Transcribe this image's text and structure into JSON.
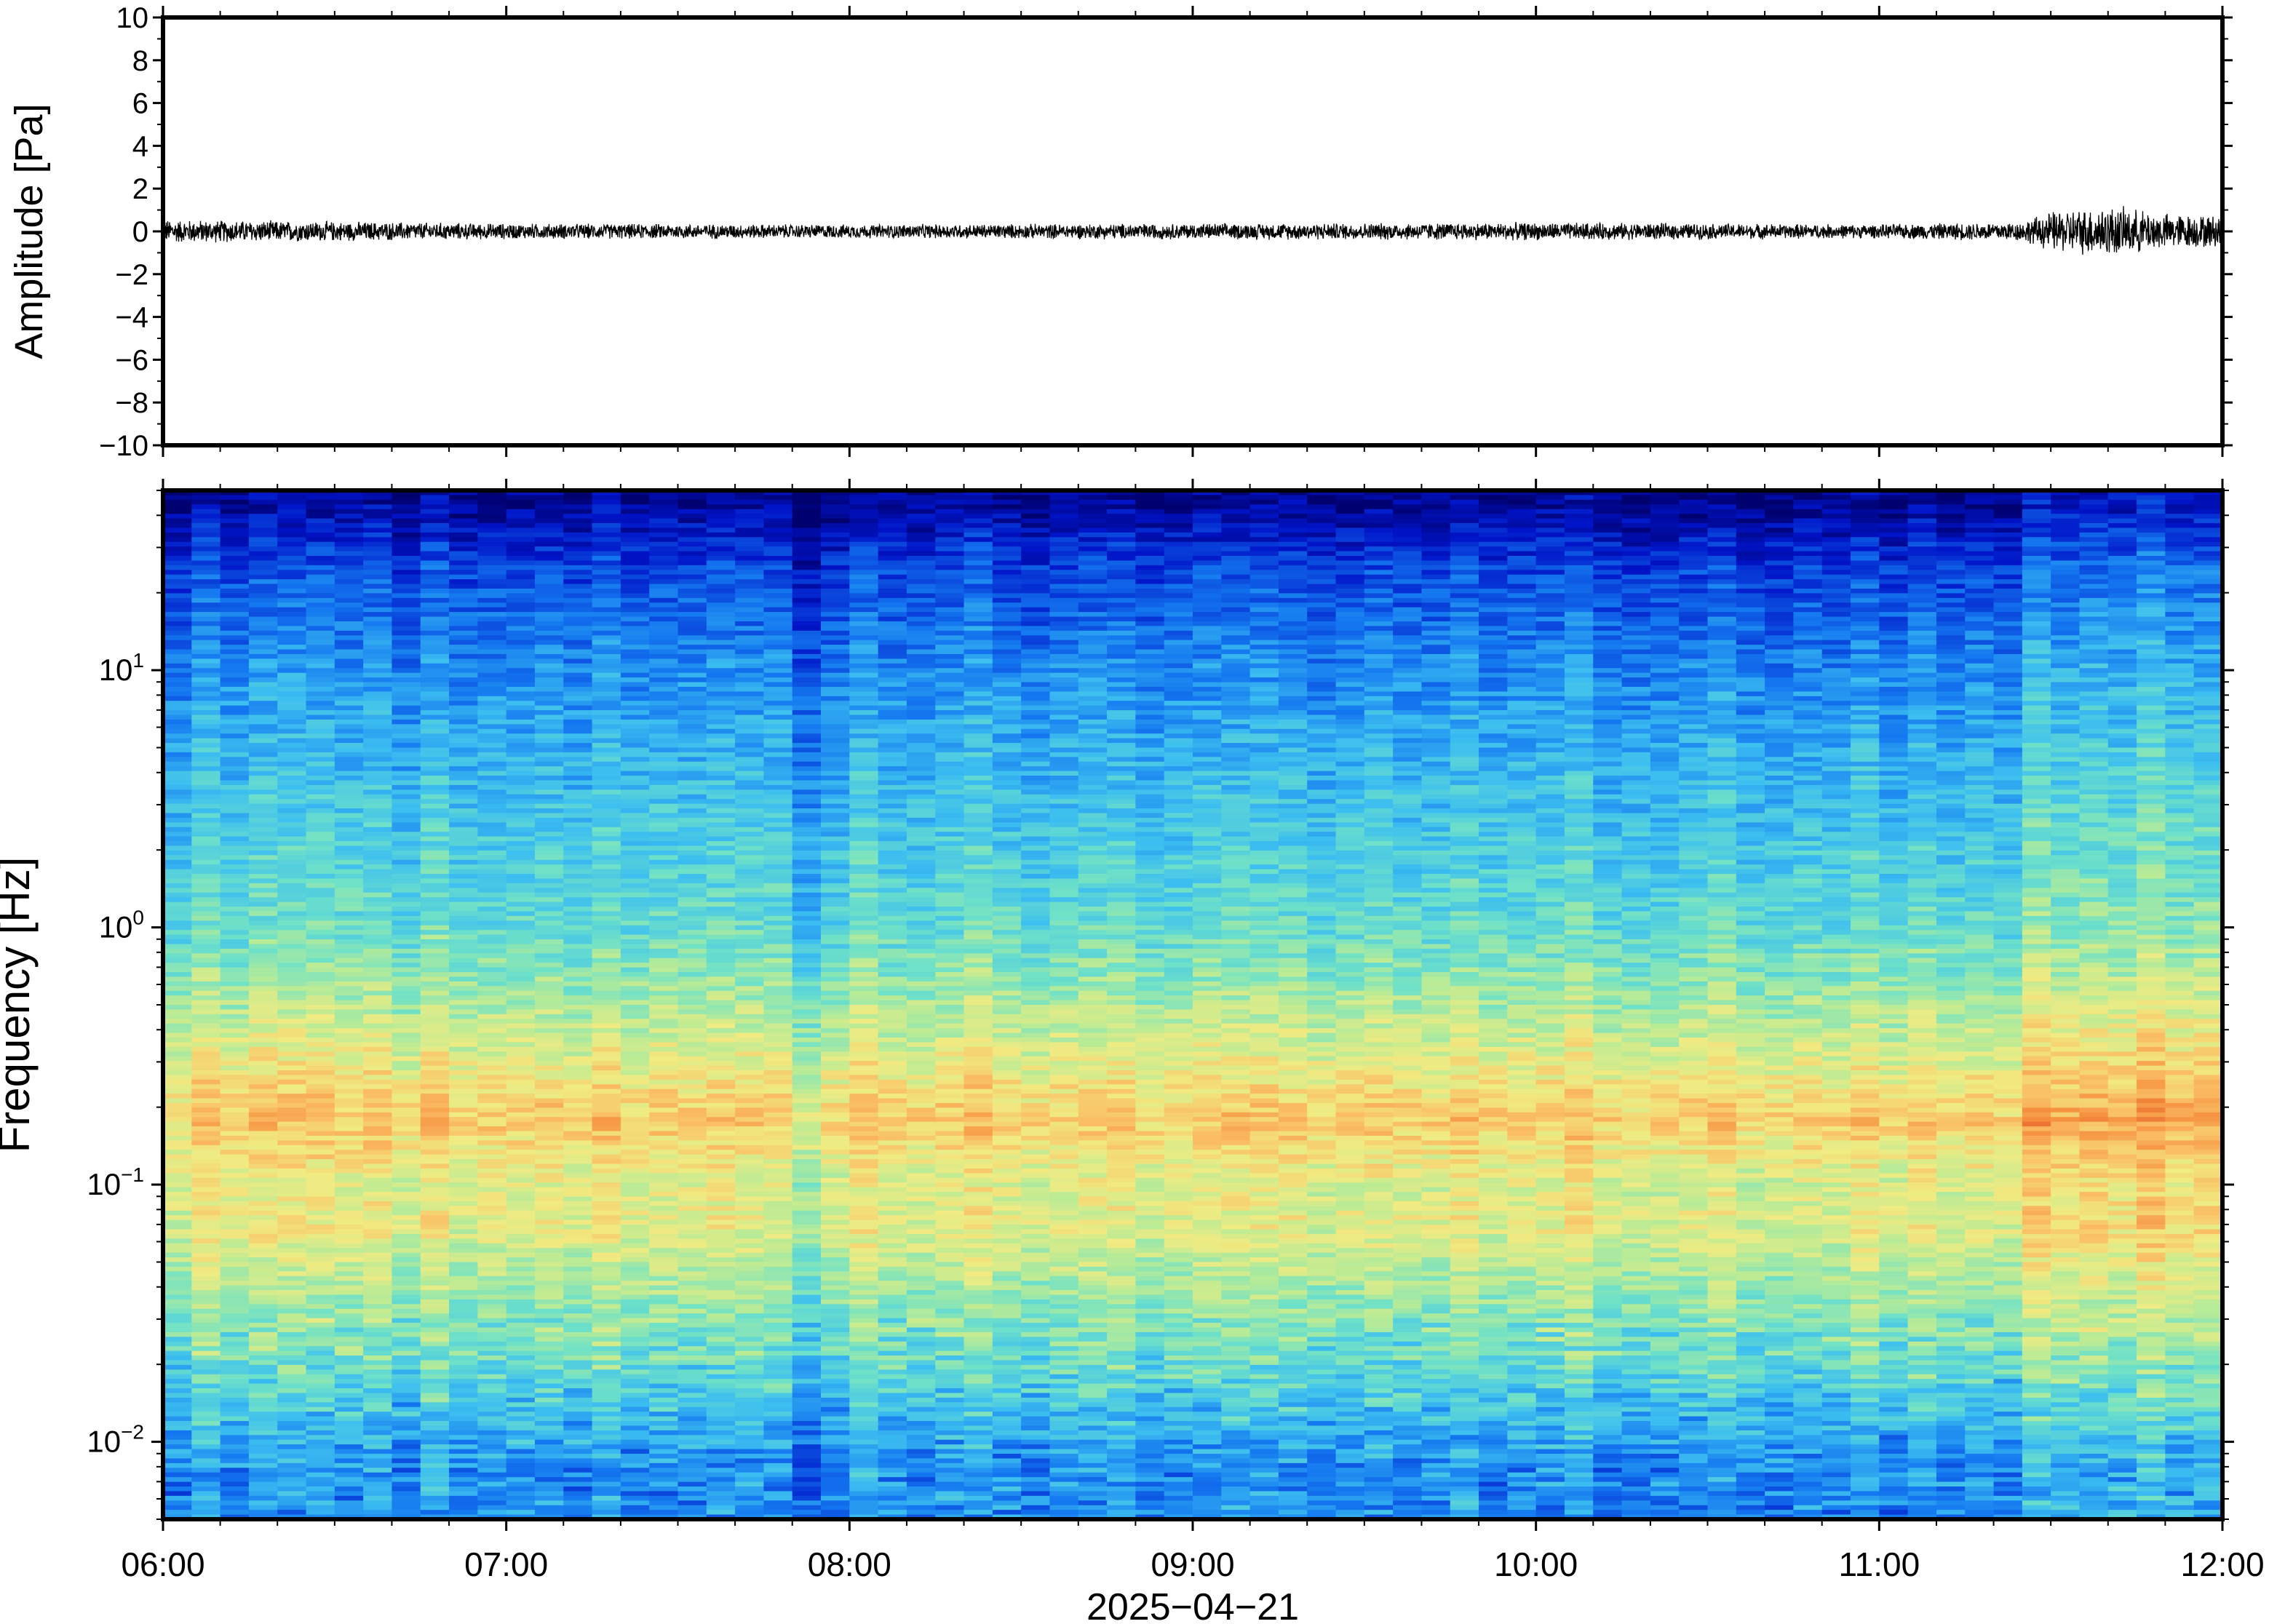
{
  "chart_data": [
    {
      "type": "line",
      "title": "",
      "ylabel": "Amplitude [Pa]",
      "xlabel": "",
      "ylim": [
        -10,
        10
      ],
      "yticks": [
        10,
        8,
        6,
        4,
        2,
        0,
        -2,
        -4,
        -6,
        -8,
        -10
      ],
      "ytick_labels": [
        "10",
        "8",
        "6",
        "4",
        "2",
        "0",
        "−2",
        "−4",
        "−6",
        "−8",
        "−10"
      ],
      "grid": false,
      "series": [
        {
          "color": "#000000",
          "x_range": [
            "06:00",
            "12:00"
          ],
          "baseline": 0,
          "envelope": {
            "x": [
              "06:00",
              "06:30",
              "07:00",
              "08:00",
              "09:00",
              "10:00",
              "11:00",
              "11:25",
              "11:30",
              "11:40",
              "11:50",
              "12:00"
            ],
            "y": [
              0.6,
              0.5,
              0.4,
              0.35,
              0.4,
              0.45,
              0.35,
              0.5,
              1.0,
              1.3,
              0.9,
              0.8
            ]
          }
        }
      ]
    },
    {
      "type": "heatmap",
      "title": "",
      "ylabel": "Frequency [Hz]",
      "xlabel": "2025−04−21",
      "y_scale": "log",
      "ylim": [
        0.005,
        50
      ],
      "yticks": [
        10,
        1,
        0.1,
        0.01
      ],
      "ytick_labels": [
        {
          "base": "10",
          "exp": "1"
        },
        {
          "base": "10",
          "exp": "0"
        },
        {
          "base": "10",
          "exp": "−1"
        },
        {
          "base": "10",
          "exp": "−2"
        }
      ],
      "x_range": [
        "06:00",
        "12:00"
      ],
      "xticks": [
        "06:00",
        "07:00",
        "08:00",
        "09:00",
        "10:00",
        "11:00",
        "12:00"
      ],
      "colormap": "jet",
      "time_columns": 72,
      "frequency_bands_hz": [
        0.008,
        0.012,
        0.02,
        0.04,
        0.07,
        0.1,
        0.18,
        0.3,
        0.6,
        1,
        3,
        10,
        25,
        45
      ],
      "relative_level_by_band": [
        0.32,
        0.4,
        0.5,
        0.6,
        0.7,
        0.68,
        0.8,
        0.7,
        0.58,
        0.5,
        0.42,
        0.32,
        0.2,
        0.05
      ],
      "notable_features": [
        {
          "label": "quieter period",
          "time": "07:50-08:00"
        },
        {
          "label": "elevated energy",
          "time": "11:25-12:00"
        }
      ],
      "grid": false
    }
  ]
}
